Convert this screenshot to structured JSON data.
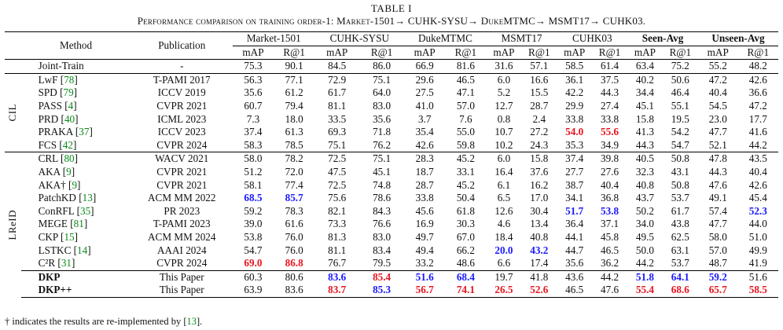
{
  "table_number": "TABLE I",
  "caption": "Performance comparison on training order-1: Market-1501→ CUHK-SYSU→ DukeMTMC→ MSMT17→ CUHK03.",
  "headers": {
    "method": "Method",
    "publication": "Publication",
    "groups": [
      "Market-1501",
      "CUHK-SYSU",
      "DukeMTMC",
      "MSMT17",
      "CUHK03",
      "Seen-Avg",
      "Unseen-Avg"
    ],
    "metrics": [
      "mAP",
      "R@1"
    ]
  },
  "joint": {
    "method": "Joint-Train",
    "publication": "-",
    "values": [
      "75.3",
      "90.1",
      "84.5",
      "86.0",
      "66.9",
      "81.6",
      "31.6",
      "57.1",
      "58.5",
      "61.4",
      "63.4",
      "75.2",
      "55.2",
      "48.2"
    ]
  },
  "cil_label": "CIL",
  "lreid_label": "LReID",
  "cil_rows": [
    {
      "method": "LwF [",
      "cite": "78",
      "close": "]",
      "publication": "T-PAMI 2017",
      "values": [
        "56.3",
        "77.1",
        "72.9",
        "75.1",
        "29.6",
        "46.5",
        "6.0",
        "16.6",
        "36.1",
        "37.5",
        "40.2",
        "50.6",
        "47.2",
        "42.6"
      ]
    },
    {
      "method": "SPD [",
      "cite": "79",
      "close": "]",
      "publication": "ICCV 2019",
      "values": [
        "35.6",
        "61.2",
        "61.7",
        "64.0",
        "27.5",
        "47.1",
        "5.2",
        "15.5",
        "42.2",
        "44.3",
        "34.4",
        "46.4",
        "40.4",
        "36.6"
      ]
    },
    {
      "method": "PASS [",
      "cite": "4",
      "close": "]",
      "publication": "CVPR 2021",
      "values": [
        "60.7",
        "79.4",
        "81.1",
        "83.0",
        "41.0",
        "57.0",
        "12.7",
        "28.7",
        "29.9",
        "27.4",
        "45.1",
        "55.1",
        "54.5",
        "47.2"
      ]
    },
    {
      "method": "PRD [",
      "cite": "40",
      "close": "]",
      "publication": "ICML 2023",
      "values": [
        "7.3",
        "18.0",
        "33.5",
        "35.6",
        "3.7",
        "7.6",
        "0.8",
        "2.4",
        "33.8",
        "33.8",
        "15.8",
        "19.5",
        "23.0",
        "17.7"
      ]
    },
    {
      "method": "PRAKA [",
      "cite": "37",
      "close": "]",
      "publication": "ICCV 2023",
      "values": [
        "37.4",
        "61.3",
        "69.3",
        "71.8",
        "35.4",
        "55.0",
        "10.7",
        "27.2",
        "54.0",
        "55.6",
        "41.3",
        "54.2",
        "47.7",
        "41.6"
      ]
    },
    {
      "method": "FCS [",
      "cite": "42",
      "close": "]",
      "publication": "CVPR 2024",
      "values": [
        "58.3",
        "78.5",
        "75.1",
        "76.2",
        "42.6",
        "59.8",
        "10.2",
        "24.3",
        "35.3",
        "34.9",
        "44.3",
        "54.7",
        "52.1",
        "44.2"
      ]
    }
  ],
  "lreid_rows": [
    {
      "method": "CRL [",
      "cite": "80",
      "close": "]",
      "publication": "WACV 2021",
      "values": [
        "58.0",
        "78.2",
        "72.5",
        "75.1",
        "28.3",
        "45.2",
        "6.0",
        "15.8",
        "37.4",
        "39.8",
        "40.5",
        "50.8",
        "47.8",
        "43.5"
      ]
    },
    {
      "method": "AKA [",
      "cite": "9",
      "close": "]",
      "publication": "CVPR 2021",
      "values": [
        "51.2",
        "72.0",
        "47.5",
        "45.1",
        "18.7",
        "33.1",
        "16.4",
        "37.6",
        "27.7",
        "27.6",
        "32.3",
        "43.1",
        "44.3",
        "40.4"
      ]
    },
    {
      "method": "AKA† [",
      "cite": "9",
      "close": "]",
      "publication": "CVPR 2021",
      "values": [
        "58.1",
        "77.4",
        "72.5",
        "74.8",
        "28.7",
        "45.2",
        "6.1",
        "16.2",
        "38.7",
        "40.4",
        "40.8",
        "50.8",
        "47.6",
        "42.6"
      ]
    },
    {
      "method": "PatchKD [",
      "cite": "13",
      "close": "]",
      "publication": "ACM MM 2022",
      "values": [
        "68.5",
        "85.7",
        "75.6",
        "78.6",
        "33.8",
        "50.4",
        "6.5",
        "17.0",
        "34.1",
        "36.8",
        "43.7",
        "53.7",
        "49.1",
        "45.4"
      ]
    },
    {
      "method": "ConRFL [",
      "cite": "35",
      "close": "]",
      "publication": "PR 2023",
      "values": [
        "59.2",
        "78.3",
        "82.1",
        "84.3",
        "45.6",
        "61.8",
        "12.6",
        "30.4",
        "51.7",
        "53.8",
        "50.2",
        "61.7",
        "57.4",
        "52.3"
      ]
    },
    {
      "method": "MEGE [",
      "cite": "81",
      "close": "]",
      "publication": "T-PAMI 2023",
      "values": [
        "39.0",
        "61.6",
        "73.3",
        "76.6",
        "16.9",
        "30.3",
        "4.6",
        "13.4",
        "36.4",
        "37.1",
        "34.0",
        "43.8",
        "47.7",
        "44.0"
      ]
    },
    {
      "method": "CKP [",
      "cite": "15",
      "close": "]",
      "publication": "ACM MM 2024",
      "values": [
        "53.8",
        "76.0",
        "81.3",
        "83.0",
        "49.7",
        "67.0",
        "18.4",
        "40.8",
        "44.1",
        "45.8",
        "49.5",
        "62.5",
        "58.0",
        "51.0"
      ]
    },
    {
      "method": "LSTKC [",
      "cite": "14",
      "close": "]",
      "publication": "AAAI 2024",
      "values": [
        "54.7",
        "76.0",
        "81.1",
        "83.4",
        "49.4",
        "66.2",
        "20.0",
        "43.2",
        "44.7",
        "46.5",
        "50.0",
        "63.1",
        "57.0",
        "49.9"
      ]
    },
    {
      "method": "C²R [",
      "cite": "31",
      "close": "]",
      "publication": "CVPR 2024",
      "values": [
        "69.0",
        "86.8",
        "76.7",
        "79.5",
        "33.2",
        "48.6",
        "6.6",
        "17.4",
        "35.6",
        "36.2",
        "44.2",
        "53.7",
        "48.7",
        "41.9"
      ]
    },
    {
      "method": "DKP",
      "cite": "",
      "close": "",
      "publication": "This Paper",
      "values": [
        "60.3",
        "80.6",
        "83.6",
        "85.4",
        "51.6",
        "68.4",
        "19.7",
        "41.8",
        "43.6",
        "44.2",
        "51.8",
        "64.1",
        "59.2",
        "51.6"
      ]
    },
    {
      "method": "DKP++",
      "cite": "",
      "close": "",
      "publication": "This Paper",
      "values": [
        "63.9",
        "83.6",
        "83.7",
        "85.3",
        "56.7",
        "74.1",
        "26.5",
        "52.6",
        "46.5",
        "47.6",
        "55.4",
        "68.6",
        "65.7",
        "58.5"
      ]
    }
  ],
  "highlights": {
    "cil": {
      "4": {
        "8": "red",
        "9": "red"
      }
    },
    "lreid": {
      "3": {
        "0": "blue",
        "1": "blue"
      },
      "4": {
        "8": "blue",
        "9": "blue",
        "13": "blue"
      },
      "7": {
        "6": "blue",
        "7": "blue"
      },
      "8": {
        "0": "red",
        "1": "red"
      },
      "9": {
        "2": "blue",
        "3": "red",
        "4": "blue",
        "5": "blue",
        "10": "blue",
        "11": "blue",
        "12": "blue"
      },
      "10": {
        "2": "red",
        "3": "blue",
        "4": "red",
        "5": "red",
        "6": "red",
        "7": "red",
        "10": "red",
        "11": "red",
        "12": "red",
        "13": "red"
      }
    }
  },
  "note": "† indicates the results are re-implemented by [",
  "note_cite": "13",
  "note_end": "]."
}
